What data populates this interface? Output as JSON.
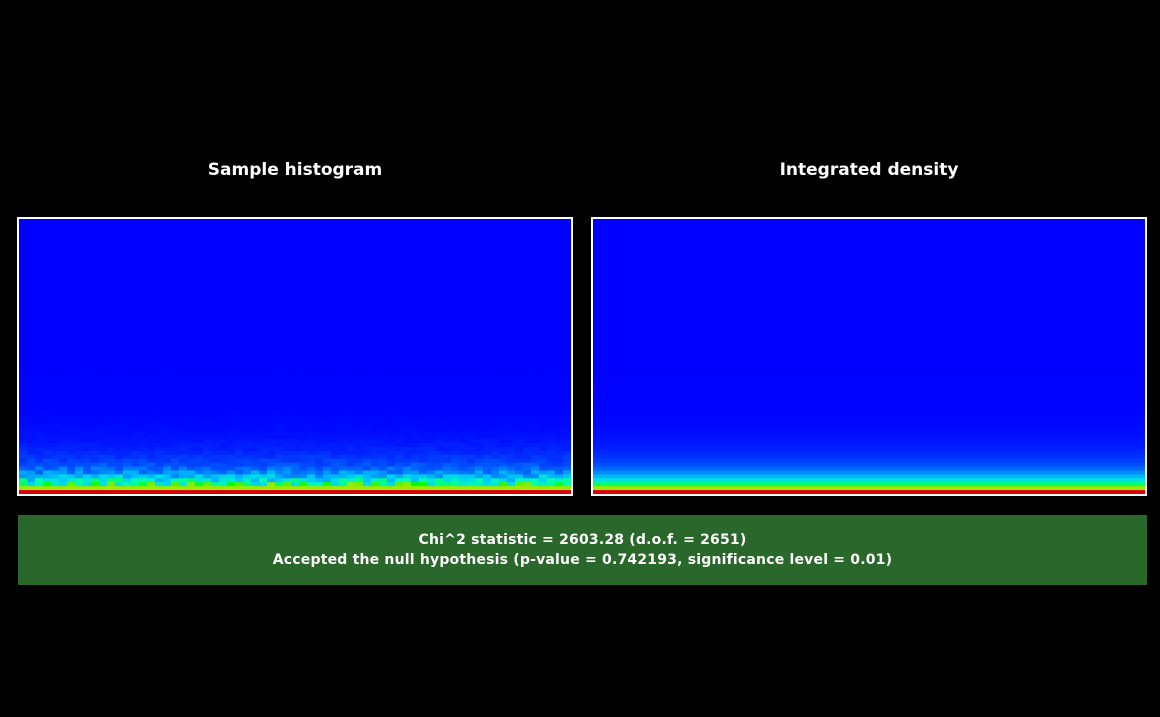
{
  "panels": {
    "left": {
      "title": "Sample histogram"
    },
    "right": {
      "title": "Integrated density"
    }
  },
  "result": {
    "statistic_line": "Chi^2 statistic = 2603.28 (d.o.f. = 2651)",
    "conclusion_line": "Accepted the null hypothesis (p-value = 0.742193, significance level = 0.01)"
  },
  "colors": {
    "background": "#000000",
    "plot_base": "#0000ff",
    "result_bg": "#2a672a",
    "text": "#ffffff"
  }
}
